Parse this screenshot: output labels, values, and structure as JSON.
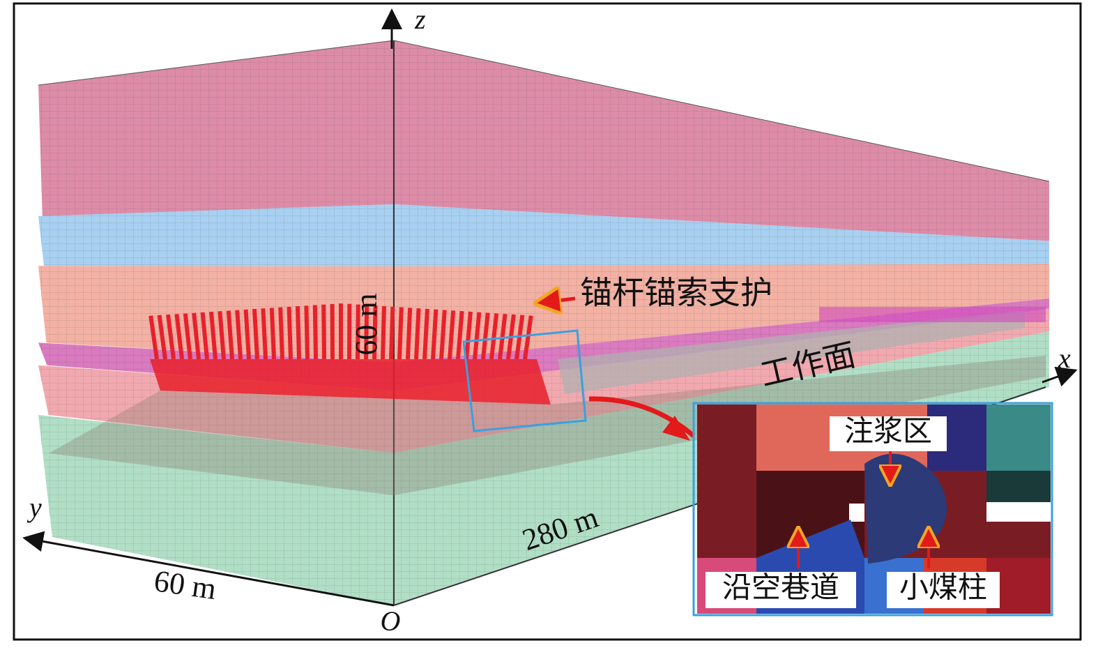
{
  "axes": {
    "z": "z",
    "x": "x",
    "y": "y",
    "origin": "O"
  },
  "dimensions": {
    "height": "60 m",
    "width": "60 m",
    "length": "280 m"
  },
  "labels": {
    "support": "锚杆锚索支护",
    "working_face": "工作面"
  },
  "inset": {
    "grouting_zone": "注浆区",
    "gob_side_roadway": "沿空巷道",
    "small_coal_pillar": "小煤柱"
  }
}
